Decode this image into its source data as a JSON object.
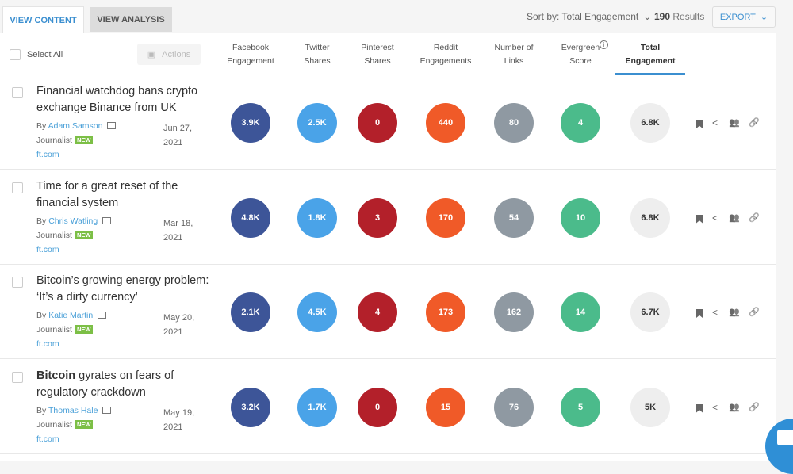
{
  "tabs": {
    "view_content": "VIEW CONTENT",
    "view_analysis": "VIEW ANALYSIS"
  },
  "toolbar": {
    "sort_label": "Sort by: Total Engagement",
    "results_count": "190",
    "results_label": "Results",
    "export_label": "EXPORT"
  },
  "header": {
    "select_all": "Select All",
    "actions": "Actions",
    "columns": [
      {
        "l1": "Facebook",
        "l2": "Engagement"
      },
      {
        "l1": "Twitter",
        "l2": "Shares"
      },
      {
        "l1": "Pinterest",
        "l2": "Shares"
      },
      {
        "l1": "Reddit",
        "l2": "Engagements"
      },
      {
        "l1": "Number of",
        "l2": "Links"
      },
      {
        "l1": "Evergreen",
        "l2": "Score"
      },
      {
        "l1": "Total",
        "l2": "Engagement"
      }
    ],
    "info_icon": "i"
  },
  "colors": {
    "facebook": "#3d5598",
    "twitter": "#4aa3e8",
    "pinterest": "#b3202a",
    "reddit": "#f05a28",
    "links": "#8f99a2",
    "evergreen": "#4bbb8b",
    "accent": "#3b8fd0"
  },
  "rows": [
    {
      "title_bold": "",
      "title": "Financial watchdog bans crypto exchange Binance from UK",
      "by": "By",
      "author": "Adam Samson",
      "role": "Journalist",
      "badge": "NEW",
      "domain": "ft.com",
      "date1": "Jun 27,",
      "date2": "2021",
      "facebook": "3.9K",
      "twitter": "2.5K",
      "pinterest": "0",
      "reddit": "440",
      "links": "80",
      "evergreen": "4",
      "total": "6.8K"
    },
    {
      "title_bold": "",
      "title": "Time for a great reset of the financial system",
      "by": "By",
      "author": "Chris Watling",
      "role": "Journalist",
      "badge": "NEW",
      "domain": "ft.com",
      "date1": "Mar 18,",
      "date2": "2021",
      "facebook": "4.8K",
      "twitter": "1.8K",
      "pinterest": "3",
      "reddit": "170",
      "links": "54",
      "evergreen": "10",
      "total": "6.8K"
    },
    {
      "title_bold": "",
      "title": "Bitcoin’s growing energy problem: ‘It’s a dirty currency’",
      "by": "By",
      "author": "Katie Martin",
      "role": "Journalist",
      "badge": "NEW",
      "domain": "ft.com",
      "date1": "May 20,",
      "date2": "2021",
      "facebook": "2.1K",
      "twitter": "4.5K",
      "pinterest": "4",
      "reddit": "173",
      "links": "162",
      "evergreen": "14",
      "total": "6.7K"
    },
    {
      "title_bold": "Bitcoin",
      "title": " gyrates on fears of regulatory crackdown",
      "by": "By",
      "author": "Thomas Hale",
      "role": "Journalist",
      "badge": "NEW",
      "domain": "ft.com",
      "date1": "May 19,",
      "date2": "2021",
      "facebook": "3.2K",
      "twitter": "1.7K",
      "pinterest": "0",
      "reddit": "15",
      "links": "76",
      "evergreen": "5",
      "total": "5K"
    }
  ]
}
